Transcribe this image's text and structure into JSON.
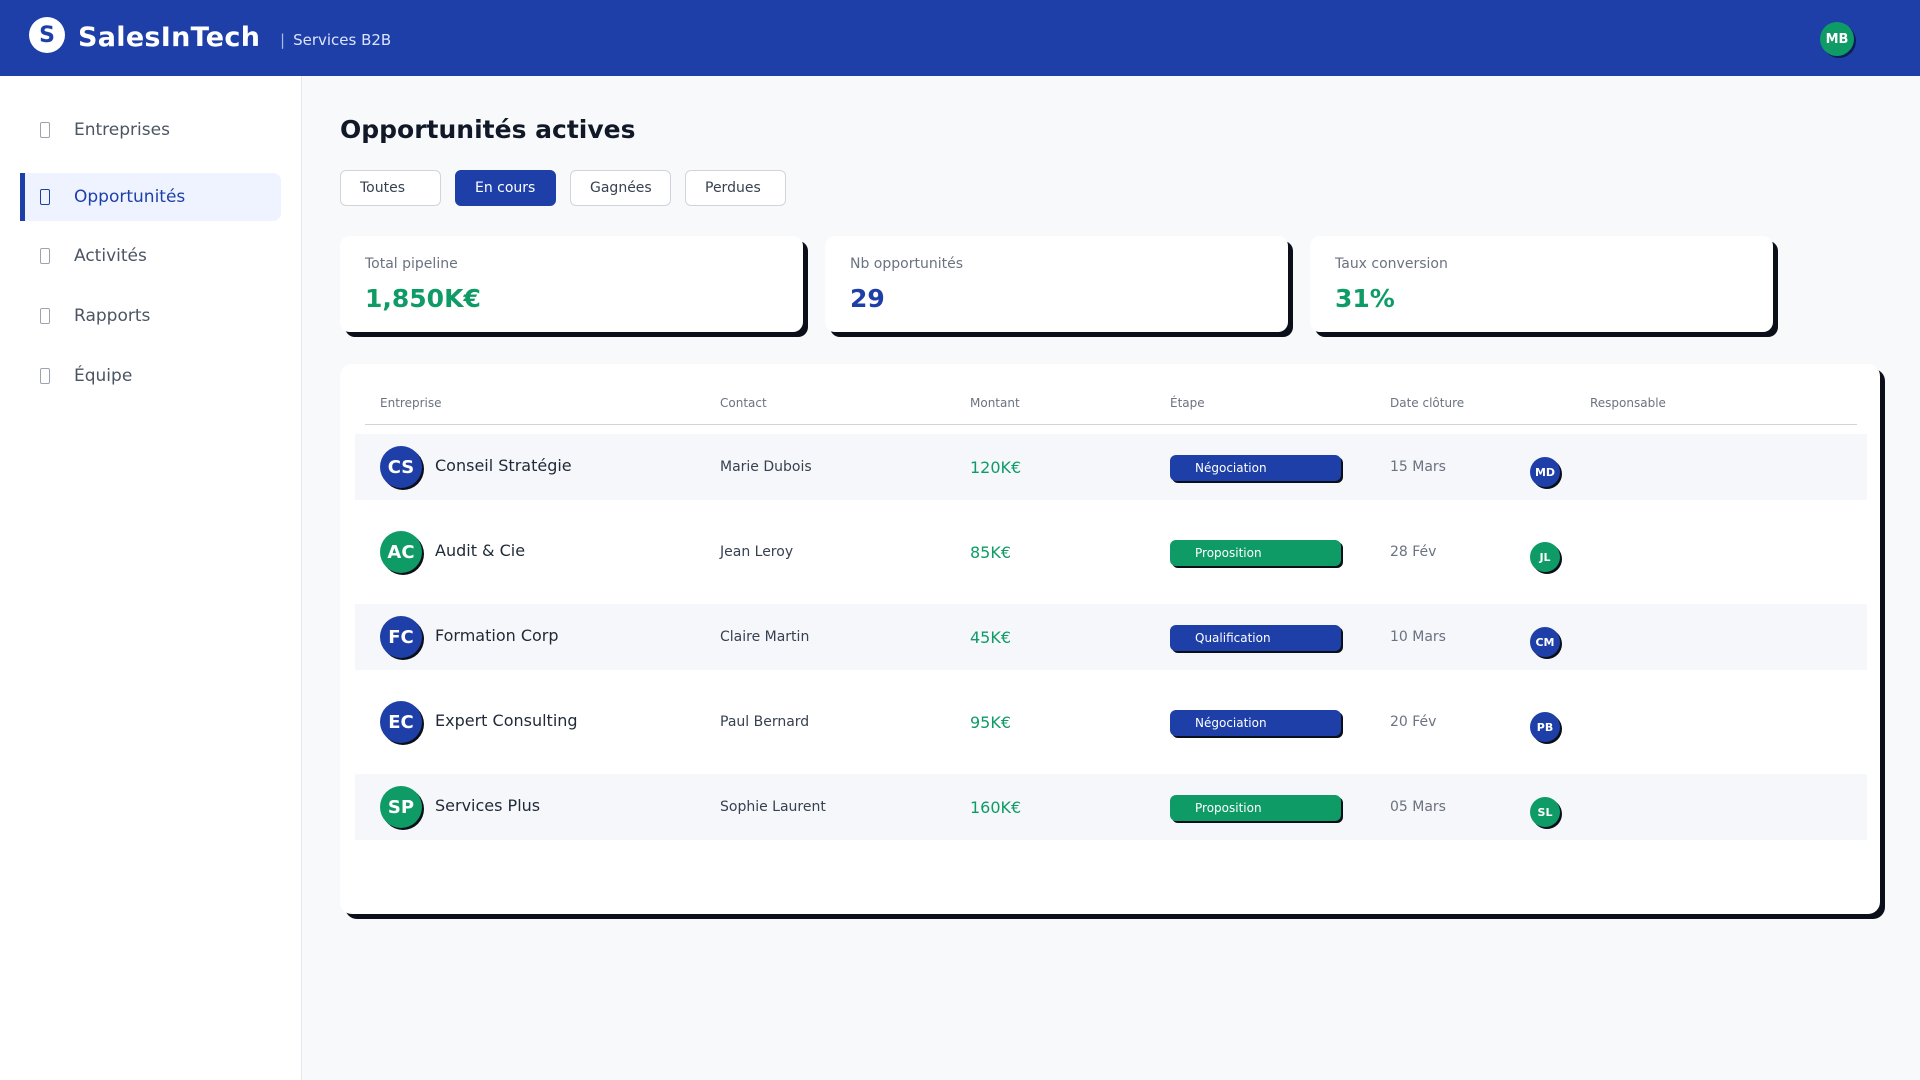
{
  "header": {
    "logo_letter": "S",
    "brand": "SalesInTech",
    "separator": "|",
    "subtitle": "Services B2B",
    "user_initials": "MB"
  },
  "sidebar": {
    "items": [
      {
        "label": "Entreprises",
        "icon": "building-icon"
      },
      {
        "label": "Opportunités",
        "icon": "target-icon",
        "active": true
      },
      {
        "label": "Activités",
        "icon": "calendar-icon"
      },
      {
        "label": "Rapports",
        "icon": "chart-icon"
      },
      {
        "label": "Équipe",
        "icon": "team-icon"
      }
    ]
  },
  "main": {
    "title": "Opportunités actives",
    "filters": [
      {
        "label": "Toutes"
      },
      {
        "label": "En cours",
        "active": true
      },
      {
        "label": "Gagnées"
      },
      {
        "label": "Perdues"
      }
    ],
    "stats": [
      {
        "label": "Total pipeline",
        "value": "1,850K€",
        "color": "#0f9b66"
      },
      {
        "label": "Nb opportunités",
        "value": "29",
        "color": "#1e3fa8"
      },
      {
        "label": "Taux conversion",
        "value": "31%",
        "color": "#0f9b66"
      }
    ],
    "table": {
      "headers": [
        "Entreprise",
        "Contact",
        "Montant",
        "Étape",
        "Date clôture",
        "Responsable"
      ],
      "rows": [
        {
          "initials": "CS",
          "company": "Conseil Stratégie",
          "contact": "Marie Dubois",
          "amount": "120K€",
          "stage": "Négociation",
          "date": "15 Mars",
          "owner": "MD",
          "avatar_color": "#1e3fa8",
          "stage_color": "#1e3fa8",
          "owner_color": "#1e3fa8"
        },
        {
          "initials": "AC",
          "company": "Audit & Cie",
          "contact": "Jean Leroy",
          "amount": "85K€",
          "stage": "Proposition",
          "date": "28 Fév",
          "owner": "JL",
          "avatar_color": "#0f9b66",
          "stage_color": "#0f9b66",
          "owner_color": "#0f9b66"
        },
        {
          "initials": "FC",
          "company": "Formation Corp",
          "contact": "Claire Martin",
          "amount": "45K€",
          "stage": "Qualification",
          "date": "10 Mars",
          "owner": "CM",
          "avatar_color": "#1e3fa8",
          "stage_color": "#1e3fa8",
          "owner_color": "#1e3fa8"
        },
        {
          "initials": "EC",
          "company": "Expert Consulting",
          "contact": "Paul Bernard",
          "amount": "95K€",
          "stage": "Négociation",
          "date": "20 Fév",
          "owner": "PB",
          "avatar_color": "#1e3fa8",
          "stage_color": "#1e3fa8",
          "owner_color": "#1e3fa8"
        },
        {
          "initials": "SP",
          "company": "Services Plus",
          "contact": "Sophie Laurent",
          "amount": "160K€",
          "stage": "Proposition",
          "date": "05 Mars",
          "owner": "SL",
          "avatar_color": "#0f9b66",
          "stage_color": "#0f9b66",
          "owner_color": "#0f9b66"
        }
      ]
    }
  }
}
